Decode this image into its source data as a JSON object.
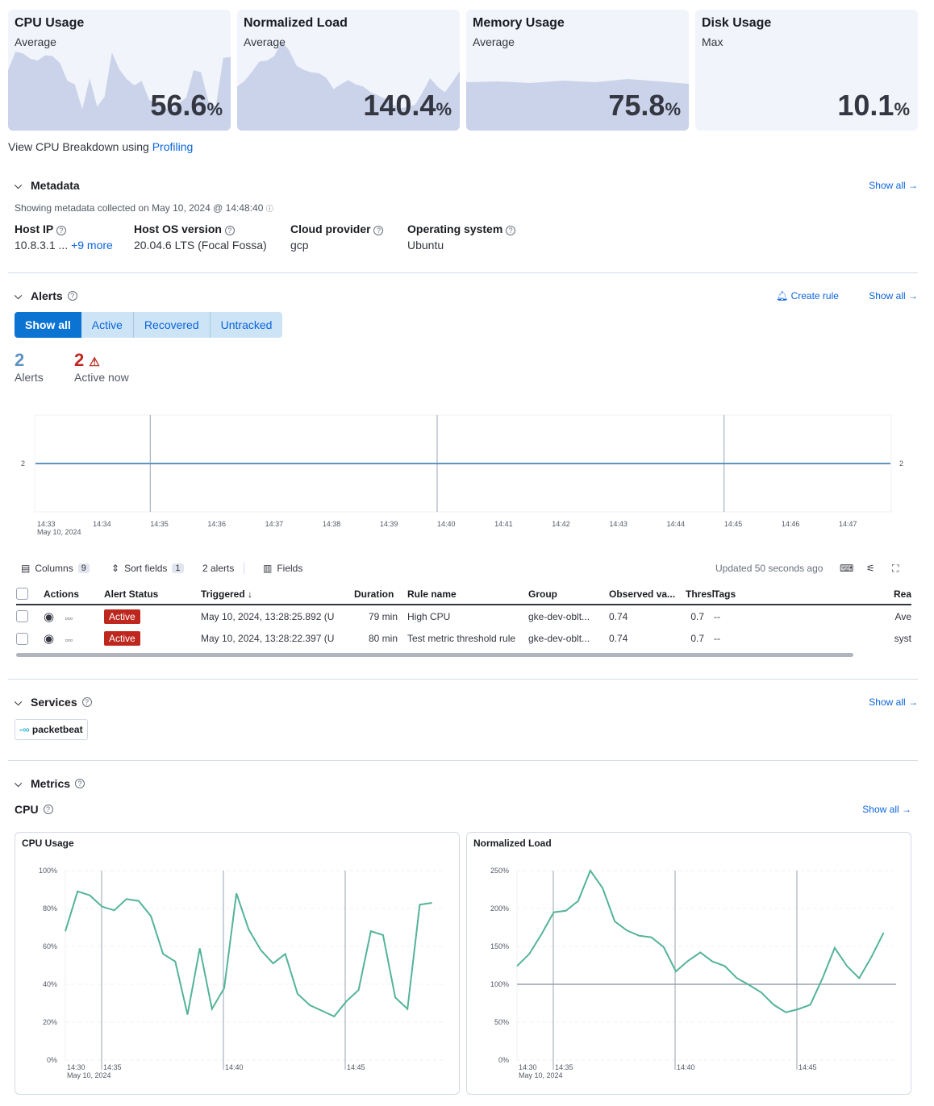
{
  "kpis": [
    {
      "title": "CPU Usage",
      "subtitle": "Average",
      "value": "56.6",
      "unit": "%"
    },
    {
      "title": "Normalized Load",
      "subtitle": "Average",
      "value": "140.4",
      "unit": "%"
    },
    {
      "title": "Memory Usage",
      "subtitle": "Average",
      "value": "75.8",
      "unit": "%"
    },
    {
      "title": "Disk Usage",
      "subtitle": "Max",
      "value": "10.1",
      "unit": "%"
    }
  ],
  "profiling": {
    "text": "View CPU Breakdown using ",
    "link": "Profiling"
  },
  "metadata": {
    "title": "Metadata",
    "show_all": "Show all",
    "collected": "Showing metadata collected on May 10, 2024 @ 14:48:40",
    "fields": [
      {
        "label": "Host IP",
        "value": "10.8.3.1 ...",
        "more": "+9 more"
      },
      {
        "label": "Host OS version",
        "value": "20.04.6 LTS (Focal Fossa)"
      },
      {
        "label": "Cloud provider",
        "value": "gcp"
      },
      {
        "label": "Operating system",
        "value": "Ubuntu"
      }
    ]
  },
  "alerts": {
    "title": "Alerts",
    "create_rule": "Create rule",
    "show_all": "Show all",
    "filters": [
      "Show all",
      "Active",
      "Recovered",
      "Untracked"
    ],
    "selected_filter": "Show all",
    "total": "2",
    "total_label": "Alerts",
    "active": "2",
    "active_label": "Active now",
    "chart": {
      "y_value": "2",
      "x_ticks": [
        "14:33",
        "14:34",
        "14:35",
        "14:36",
        "14:37",
        "14:38",
        "14:39",
        "14:40",
        "14:41",
        "14:42",
        "14:43",
        "14:44",
        "14:45",
        "14:46",
        "14:47"
      ],
      "date": "May 10, 2024"
    },
    "toolbar": {
      "columns": "Columns",
      "columns_count": "9",
      "sort": "Sort fields",
      "sort_count": "1",
      "count": "2 alerts",
      "fields": "Fields",
      "updated": "Updated 50 seconds ago"
    },
    "columns": [
      "Actions",
      "Alert Status",
      "Triggered ↓",
      "Duration",
      "Rule name",
      "Group",
      "Observed va...",
      "Threshold",
      "Tags",
      "Rea"
    ],
    "rows": [
      {
        "status": "Active",
        "triggered": "May 10, 2024, 13:28:25.892 (U",
        "duration": "79 min",
        "rule": "High CPU",
        "group": "gke-dev-oblt...",
        "observed": "0.74",
        "threshold": "0.7",
        "tags": "--",
        "reason": "Ave"
      },
      {
        "status": "Active",
        "triggered": "May 10, 2024, 13:28:22.397 (U",
        "duration": "80 min",
        "rule": "Test metric threshold rule",
        "group": "gke-dev-oblt...",
        "observed": "0.74",
        "threshold": "0.7",
        "tags": "--",
        "reason": "syst"
      }
    ]
  },
  "services": {
    "title": "Services",
    "show_all": "Show all",
    "items": [
      "packetbeat"
    ]
  },
  "metrics": {
    "title": "Metrics",
    "cpu_title": "CPU",
    "show_all": "Show all"
  },
  "colors": {
    "accent": "#0b64dd",
    "line": "#54b399",
    "danger": "#bd271e",
    "card_bg": "#f1f4fa",
    "spark": "#cad3ea"
  },
  "chart_data": [
    {
      "type": "line",
      "title": "CPU Usage",
      "ylim": [
        0,
        100
      ],
      "y_ticks": [
        "0%",
        "20%",
        "40%",
        "60%",
        "80%",
        "100%"
      ],
      "x_ticks": [
        "14:30",
        "14:35",
        "14:40",
        "14:45"
      ],
      "date": "May 10, 2024",
      "x_start": "14:33:30",
      "x_step_seconds": 30,
      "values": [
        68,
        89,
        87,
        81,
        79,
        85,
        84,
        76,
        56,
        52,
        24,
        59,
        27,
        38,
        88,
        69,
        58,
        51,
        56,
        35,
        29,
        26,
        23,
        31,
        37,
        68,
        66,
        33,
        27,
        82,
        83
      ]
    },
    {
      "type": "line",
      "title": "Normalized Load",
      "ylim": [
        0,
        250
      ],
      "y_ticks": [
        "0%",
        "50%",
        "100%",
        "150%",
        "200%",
        "250%"
      ],
      "x_ticks": [
        "14:30",
        "14:35",
        "14:40",
        "14:45"
      ],
      "date": "May 10, 2024",
      "reference_line": 100,
      "x_start": "14:33:30",
      "x_step_seconds": 30,
      "values": [
        124,
        140,
        166,
        195,
        197,
        210,
        250,
        227,
        183,
        171,
        164,
        162,
        149,
        117,
        131,
        142,
        130,
        124,
        108,
        99,
        89,
        73,
        63,
        67,
        73,
        108,
        148,
        124,
        108,
        136,
        168
      ]
    }
  ]
}
